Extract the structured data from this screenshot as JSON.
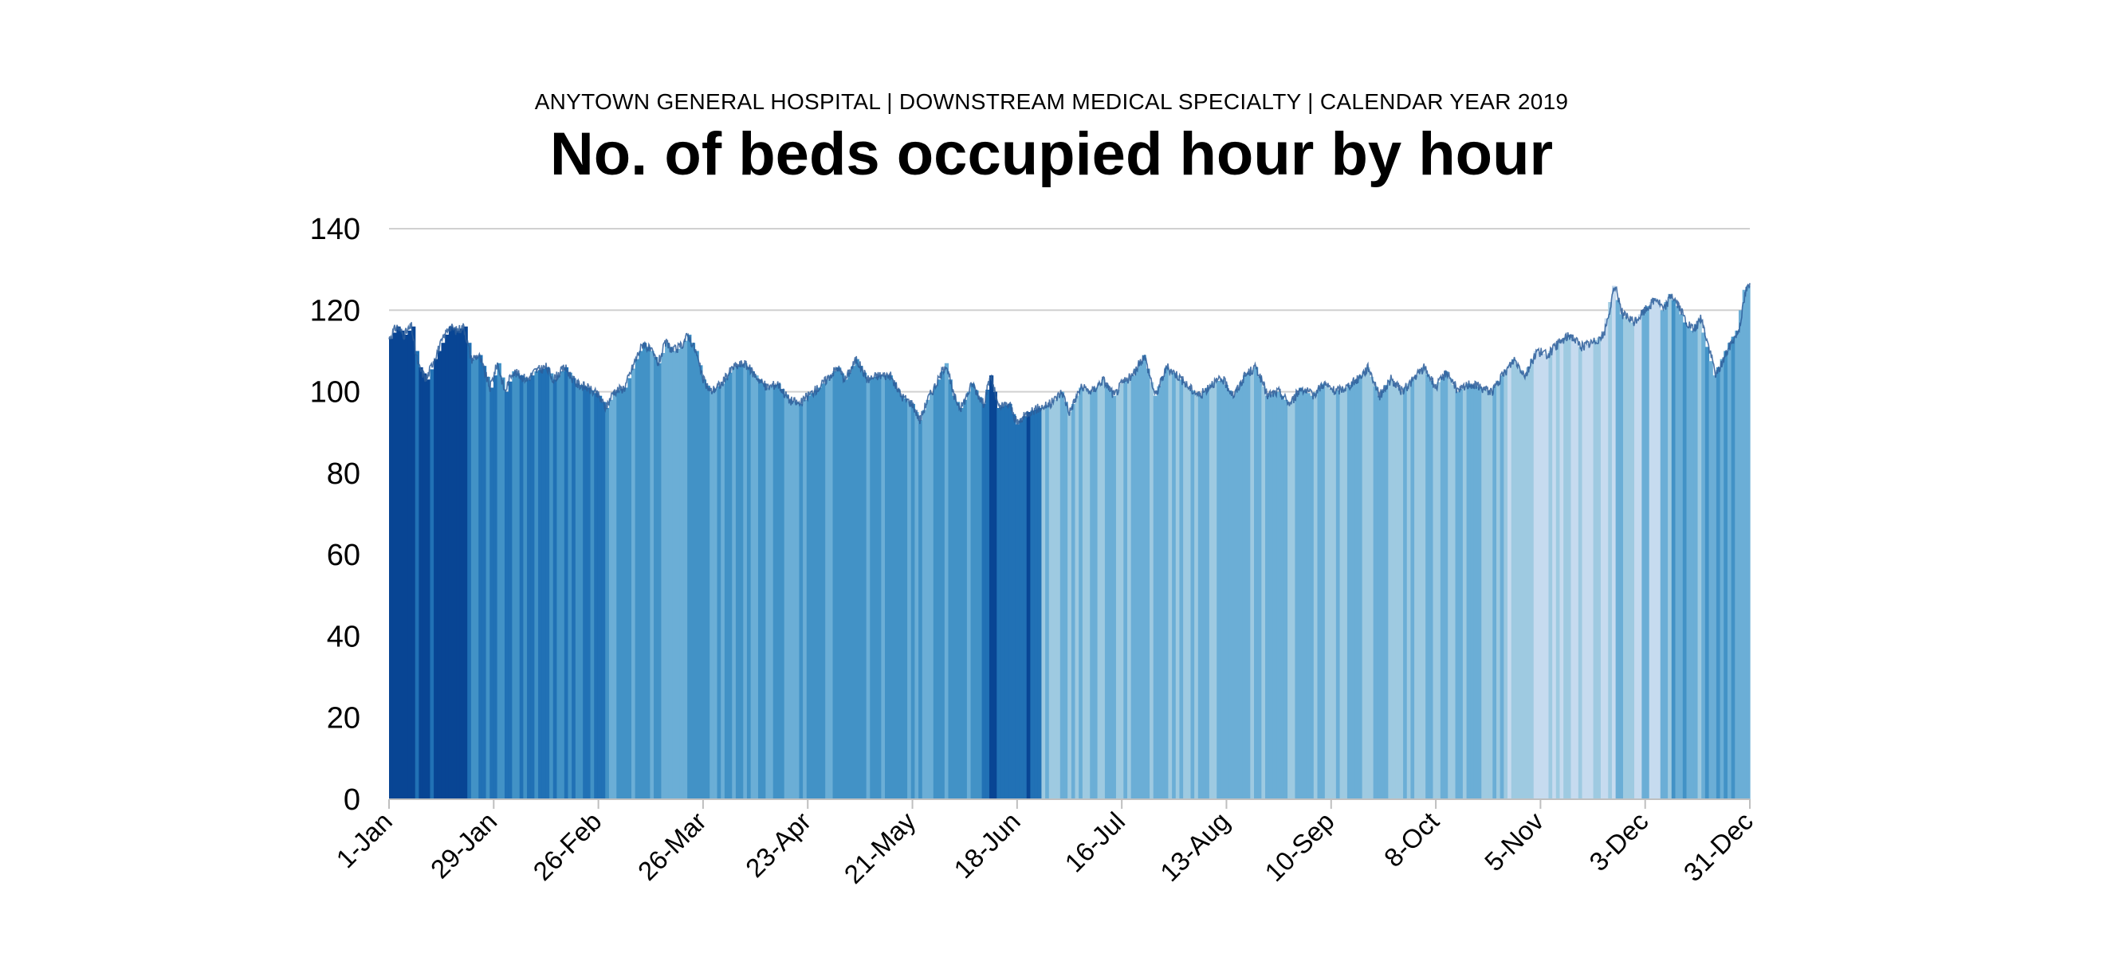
{
  "header": {
    "subtitle": "ANYTOWN GENERAL HOSPITAL | DOWNSTREAM MEDICAL SPECIALTY | CALENDAR YEAR 2019",
    "title": "No. of beds occupied hour by hour"
  },
  "chart_data": {
    "type": "area",
    "title": "No. of beds occupied hour by hour",
    "subtitle": "ANYTOWN GENERAL HOSPITAL | DOWNSTREAM MEDICAL SPECIALTY | CALENDAR YEAR 2019",
    "x_unit": "day of year 2019",
    "x_range": [
      1,
      365
    ],
    "ylim": [
      0,
      140
    ],
    "yticks": [
      0,
      20,
      40,
      60,
      80,
      100,
      120,
      140
    ],
    "xticks": [
      {
        "day": 1,
        "label": "1-Jan"
      },
      {
        "day": 29,
        "label": "29-Jan"
      },
      {
        "day": 57,
        "label": "26-Feb"
      },
      {
        "day": 85,
        "label": "26-Mar"
      },
      {
        "day": 113,
        "label": "23-Apr"
      },
      {
        "day": 141,
        "label": "21-May"
      },
      {
        "day": 169,
        "label": "18-Jun"
      },
      {
        "day": 197,
        "label": "16-Jul"
      },
      {
        "day": 225,
        "label": "13-Aug"
      },
      {
        "day": 253,
        "label": "10-Sep"
      },
      {
        "day": 281,
        "label": "8-Oct"
      },
      {
        "day": 309,
        "label": "5-Nov"
      },
      {
        "day": 337,
        "label": "3-Dec"
      },
      {
        "day": 365,
        "label": "31-Dec"
      }
    ],
    "grid": true,
    "legend": "none",
    "shade_note": "Daily bar colour varies from dark to light blue",
    "colors": [
      "#084594",
      "#2171b5",
      "#4292c6",
      "#6baed6",
      "#9ecae1",
      "#c6dbef",
      "#deebf7"
    ],
    "points": [
      {
        "day": 1,
        "y": 113
      },
      {
        "day": 3,
        "y": 116
      },
      {
        "day": 5,
        "y": 114
      },
      {
        "day": 7,
        "y": 116
      },
      {
        "day": 8,
        "y": 110
      },
      {
        "day": 9,
        "y": 106
      },
      {
        "day": 11,
        "y": 103
      },
      {
        "day": 13,
        "y": 108
      },
      {
        "day": 15,
        "y": 112
      },
      {
        "day": 17,
        "y": 116
      },
      {
        "day": 19,
        "y": 115
      },
      {
        "day": 21,
        "y": 116
      },
      {
        "day": 23,
        "y": 108
      },
      {
        "day": 25,
        "y": 109
      },
      {
        "day": 28,
        "y": 101
      },
      {
        "day": 30,
        "y": 107
      },
      {
        "day": 32,
        "y": 100
      },
      {
        "day": 34,
        "y": 105
      },
      {
        "day": 36,
        "y": 104
      },
      {
        "day": 38,
        "y": 103
      },
      {
        "day": 40,
        "y": 105
      },
      {
        "day": 43,
        "y": 106
      },
      {
        "day": 45,
        "y": 103
      },
      {
        "day": 48,
        "y": 106
      },
      {
        "day": 51,
        "y": 102
      },
      {
        "day": 54,
        "y": 101
      },
      {
        "day": 57,
        "y": 99
      },
      {
        "day": 59,
        "y": 96
      },
      {
        "day": 61,
        "y": 100
      },
      {
        "day": 64,
        "y": 101
      },
      {
        "day": 67,
        "y": 108
      },
      {
        "day": 69,
        "y": 112
      },
      {
        "day": 71,
        "y": 110
      },
      {
        "day": 73,
        "y": 107
      },
      {
        "day": 75,
        "y": 112
      },
      {
        "day": 77,
        "y": 110
      },
      {
        "day": 79,
        "y": 111
      },
      {
        "day": 81,
        "y": 114
      },
      {
        "day": 83,
        "y": 110
      },
      {
        "day": 85,
        "y": 103
      },
      {
        "day": 87,
        "y": 100
      },
      {
        "day": 90,
        "y": 102
      },
      {
        "day": 93,
        "y": 106
      },
      {
        "day": 96,
        "y": 107
      },
      {
        "day": 99,
        "y": 104
      },
      {
        "day": 102,
        "y": 101
      },
      {
        "day": 105,
        "y": 102
      },
      {
        "day": 108,
        "y": 98
      },
      {
        "day": 111,
        "y": 97
      },
      {
        "day": 113,
        "y": 99
      },
      {
        "day": 116,
        "y": 101
      },
      {
        "day": 118,
        "y": 103
      },
      {
        "day": 121,
        "y": 106
      },
      {
        "day": 123,
        "y": 103
      },
      {
        "day": 126,
        "y": 108
      },
      {
        "day": 129,
        "y": 103
      },
      {
        "day": 132,
        "y": 104
      },
      {
        "day": 135,
        "y": 104
      },
      {
        "day": 138,
        "y": 99
      },
      {
        "day": 141,
        "y": 97
      },
      {
        "day": 143,
        "y": 93
      },
      {
        "day": 145,
        "y": 98
      },
      {
        "day": 148,
        "y": 103
      },
      {
        "day": 150,
        "y": 107
      },
      {
        "day": 152,
        "y": 99
      },
      {
        "day": 154,
        "y": 96
      },
      {
        "day": 157,
        "y": 102
      },
      {
        "day": 160,
        "y": 97
      },
      {
        "day": 162,
        "y": 104
      },
      {
        "day": 164,
        "y": 96
      },
      {
        "day": 167,
        "y": 97
      },
      {
        "day": 169,
        "y": 92
      },
      {
        "day": 172,
        "y": 95
      },
      {
        "day": 175,
        "y": 96
      },
      {
        "day": 178,
        "y": 97
      },
      {
        "day": 181,
        "y": 100
      },
      {
        "day": 183,
        "y": 95
      },
      {
        "day": 186,
        "y": 101
      },
      {
        "day": 189,
        "y": 100
      },
      {
        "day": 192,
        "y": 103
      },
      {
        "day": 195,
        "y": 99
      },
      {
        "day": 197,
        "y": 102
      },
      {
        "day": 200,
        "y": 104
      },
      {
        "day": 203,
        "y": 109
      },
      {
        "day": 206,
        "y": 99
      },
      {
        "day": 209,
        "y": 106
      },
      {
        "day": 212,
        "y": 104
      },
      {
        "day": 215,
        "y": 101
      },
      {
        "day": 218,
        "y": 99
      },
      {
        "day": 221,
        "y": 102
      },
      {
        "day": 224,
        "y": 103
      },
      {
        "day": 227,
        "y": 99
      },
      {
        "day": 230,
        "y": 104
      },
      {
        "day": 233,
        "y": 106
      },
      {
        "day": 236,
        "y": 99
      },
      {
        "day": 239,
        "y": 100
      },
      {
        "day": 242,
        "y": 97
      },
      {
        "day": 245,
        "y": 101
      },
      {
        "day": 248,
        "y": 99
      },
      {
        "day": 251,
        "y": 102
      },
      {
        "day": 254,
        "y": 100
      },
      {
        "day": 257,
        "y": 101
      },
      {
        "day": 260,
        "y": 103
      },
      {
        "day": 263,
        "y": 106
      },
      {
        "day": 266,
        "y": 99
      },
      {
        "day": 269,
        "y": 103
      },
      {
        "day": 272,
        "y": 100
      },
      {
        "day": 275,
        "y": 103
      },
      {
        "day": 278,
        "y": 106
      },
      {
        "day": 281,
        "y": 101
      },
      {
        "day": 284,
        "y": 105
      },
      {
        "day": 287,
        "y": 100
      },
      {
        "day": 290,
        "y": 102
      },
      {
        "day": 293,
        "y": 101
      },
      {
        "day": 296,
        "y": 100
      },
      {
        "day": 299,
        "y": 104
      },
      {
        "day": 302,
        "y": 108
      },
      {
        "day": 305,
        "y": 104
      },
      {
        "day": 308,
        "y": 110
      },
      {
        "day": 311,
        "y": 109
      },
      {
        "day": 314,
        "y": 112
      },
      {
        "day": 317,
        "y": 114
      },
      {
        "day": 320,
        "y": 111
      },
      {
        "day": 323,
        "y": 112
      },
      {
        "day": 326,
        "y": 114
      },
      {
        "day": 328,
        "y": 122
      },
      {
        "day": 329,
        "y": 126
      },
      {
        "day": 331,
        "y": 119
      },
      {
        "day": 334,
        "y": 117
      },
      {
        "day": 337,
        "y": 120
      },
      {
        "day": 340,
        "y": 123
      },
      {
        "day": 342,
        "y": 120
      },
      {
        "day": 344,
        "y": 124
      },
      {
        "day": 346,
        "y": 121
      },
      {
        "day": 348,
        "y": 117
      },
      {
        "day": 350,
        "y": 115
      },
      {
        "day": 352,
        "y": 118
      },
      {
        "day": 354,
        "y": 111
      },
      {
        "day": 356,
        "y": 104
      },
      {
        "day": 358,
        "y": 108
      },
      {
        "day": 360,
        "y": 112
      },
      {
        "day": 362,
        "y": 115
      },
      {
        "day": 364,
        "y": 125
      },
      {
        "day": 365,
        "y": 126
      }
    ]
  }
}
